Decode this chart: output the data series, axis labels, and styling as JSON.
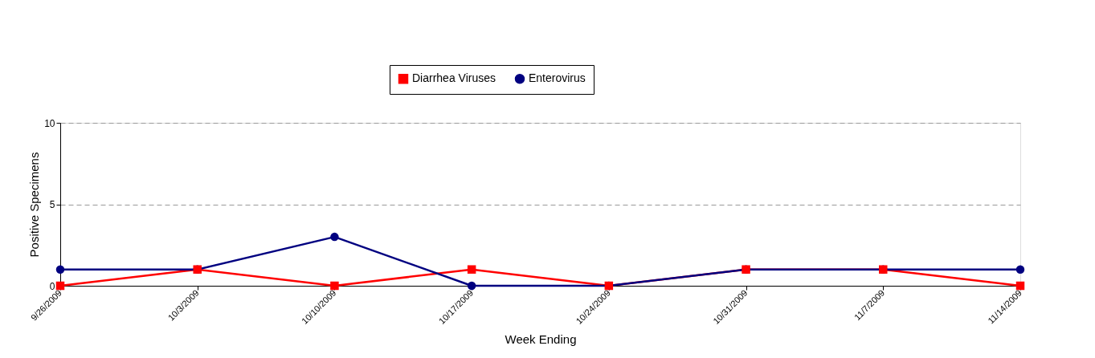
{
  "chart_data": {
    "type": "line",
    "xlabel": "Week Ending",
    "ylabel": "Positive Specimens",
    "categories": [
      "9/26/2009",
      "10/3/2009",
      "10/10/2009",
      "10/17/2009",
      "10/24/2009",
      "10/31/2009",
      "11/7/2009",
      "11/14/2009"
    ],
    "series": [
      {
        "name": "Diarrhea Viruses",
        "color": "#ff0000",
        "marker": "square",
        "values": [
          0,
          1,
          0,
          1,
          0,
          1,
          1,
          0
        ]
      },
      {
        "name": "Enterovirus",
        "color": "#000080",
        "marker": "circle",
        "values": [
          1,
          1,
          3,
          0,
          0,
          1,
          1,
          1
        ]
      }
    ],
    "ylim": [
      0,
      10
    ],
    "yticks": [
      0,
      5,
      10
    ],
    "grid": "y",
    "legend": "top",
    "line_style": "solid"
  }
}
